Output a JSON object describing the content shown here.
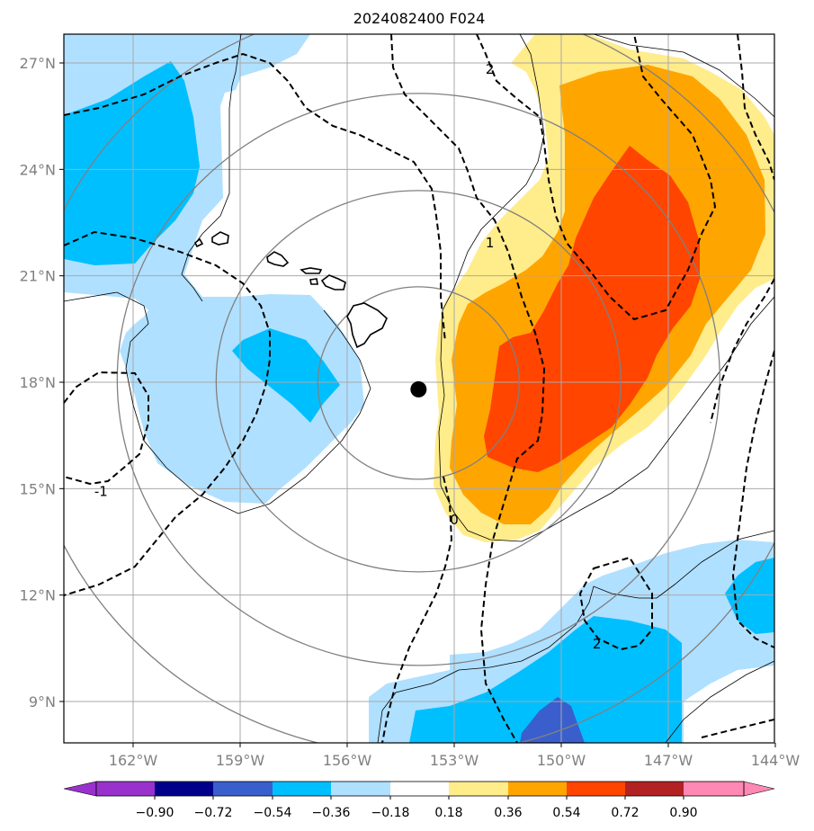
{
  "title": "2024082400 F024",
  "map": {
    "lon_ticks": [
      {
        "lon": -162,
        "label": "162°W"
      },
      {
        "lon": -159,
        "label": "159°W"
      },
      {
        "lon": -156,
        "label": "156°W"
      },
      {
        "lon": -153,
        "label": "153°W"
      },
      {
        "lon": -150,
        "label": "150°W"
      },
      {
        "lon": -147,
        "label": "147°W"
      },
      {
        "lon": -144,
        "label": "144°W"
      }
    ],
    "lat_ticks": [
      {
        "lat": 9,
        "label": "9°N"
      },
      {
        "lat": 12,
        "label": "12°N"
      },
      {
        "lat": 15,
        "label": "15°N"
      },
      {
        "lat": 18,
        "label": "18°N"
      },
      {
        "lat": 21,
        "label": "21°N"
      },
      {
        "lat": 24,
        "label": "24°N"
      },
      {
        "lat": 27,
        "label": "27°N"
      }
    ],
    "center_marker": {
      "lon": -154.0,
      "lat": 17.8
    }
  },
  "contour_labels": [
    {
      "text": "2",
      "lon": -152.0,
      "lat": 26.8
    },
    {
      "text": "1",
      "lon": -152.0,
      "lat": 21.9
    },
    {
      "text": "0",
      "lon": -153.0,
      "lat": 14.1
    },
    {
      "text": "-1",
      "lon": -162.9,
      "lat": 14.9
    },
    {
      "text": "2",
      "lon": -149.0,
      "lat": 10.6
    }
  ],
  "colorbar": {
    "tick_labels": [
      "−0.90",
      "−0.72",
      "−0.54",
      "−0.36",
      "−0.18",
      "0.18",
      "0.36",
      "0.54",
      "0.72",
      "0.90"
    ],
    "colors": [
      "#9932cc",
      "#00008b",
      "#3a5fcd",
      "#00bfff",
      "#b0e0ff",
      "#ffffff",
      "#ffec8b",
      "#ffa500",
      "#ff4500",
      "#b22222",
      "#ff88b4"
    ]
  }
}
